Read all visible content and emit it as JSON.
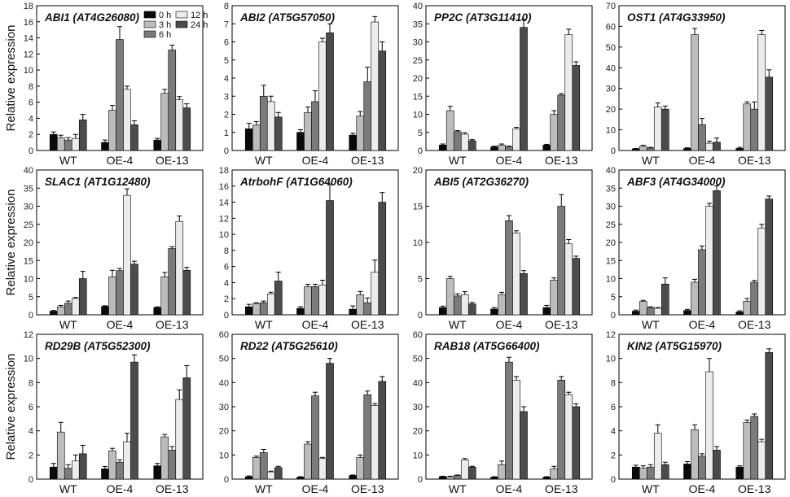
{
  "chart_data": {
    "type": "bar",
    "ylabel": "Relative expression",
    "categories": [
      "WT",
      "OE-4",
      "OE-13"
    ],
    "legend": {
      "position": "top-right of first panel",
      "entries": [
        "0 h",
        "3 h",
        "6 h",
        "12 h",
        "24 h"
      ],
      "colors": [
        "#0a0a0a",
        "#bcbcbc",
        "#7b7b7b",
        "#ececec",
        "#4c4c4c"
      ]
    },
    "series_names": [
      "0 h",
      "3 h",
      "6 h",
      "12 h",
      "24 h"
    ],
    "series_colors": [
      "#0a0a0a",
      "#bcbcbc",
      "#7b7b7b",
      "#ececec",
      "#4c4c4c"
    ],
    "panels": [
      {
        "title": "ABI1 (AT4G26080)",
        "ylim": [
          0,
          18
        ],
        "yticks": [
          0,
          2,
          4,
          6,
          8,
          10,
          12,
          14,
          16,
          18
        ],
        "values": [
          [
            2.0,
            1.6,
            1.3,
            1.5,
            3.8
          ],
          [
            1.0,
            5.0,
            13.8,
            7.6,
            3.2
          ],
          [
            1.3,
            7.1,
            12.5,
            6.3,
            5.3
          ]
        ],
        "errors": [
          [
            0.3,
            0.3,
            0.3,
            0.5,
            0.7
          ],
          [
            0.3,
            0.6,
            1.6,
            0.4,
            0.5
          ],
          [
            0.2,
            0.5,
            0.6,
            0.4,
            0.5
          ]
        ]
      },
      {
        "title": "ABI2 (AT5G57050)",
        "ylim": [
          0,
          8
        ],
        "yticks": [
          0,
          1,
          2,
          3,
          4,
          5,
          6,
          7,
          8
        ],
        "values": [
          [
            1.2,
            1.4,
            3.0,
            2.7,
            1.85
          ],
          [
            1.0,
            2.1,
            2.7,
            6.0,
            6.5
          ],
          [
            0.85,
            1.9,
            3.8,
            7.1,
            5.5
          ]
        ],
        "errors": [
          [
            0.3,
            0.2,
            0.6,
            0.3,
            0.25
          ],
          [
            0.15,
            0.3,
            0.6,
            0.2,
            0.5
          ],
          [
            0.1,
            0.25,
            0.8,
            0.3,
            0.5
          ]
        ]
      },
      {
        "title": "PP2C (AT3G11410)",
        "ylim": [
          0,
          40
        ],
        "yticks": [
          0,
          5,
          10,
          15,
          20,
          25,
          30,
          35,
          40
        ],
        "values": [
          [
            1.5,
            11.0,
            5.2,
            4.5,
            2.7
          ],
          [
            1.0,
            1.5,
            1.0,
            6.0,
            34.0
          ],
          [
            1.5,
            10.0,
            15.3,
            32.0,
            23.5
          ]
        ],
        "errors": [
          [
            0.3,
            1.2,
            0.3,
            0.4,
            0.3
          ],
          [
            0.2,
            0.3,
            0.2,
            0.4,
            2.2
          ],
          [
            0.2,
            1.0,
            0.4,
            1.5,
            1.0
          ]
        ]
      },
      {
        "title": "OST1 (AT4G33950)",
        "ylim": [
          0,
          70
        ],
        "yticks": [
          0,
          10,
          20,
          30,
          40,
          50,
          60,
          70
        ],
        "values": [
          [
            0.8,
            2.0,
            1.2,
            21.0,
            20.0
          ],
          [
            1.0,
            56.0,
            12.5,
            3.5,
            4.0
          ],
          [
            1.0,
            22.5,
            20.0,
            56.0,
            35.5
          ]
        ],
        "errors": [
          [
            0.2,
            0.5,
            0.3,
            2.0,
            1.5
          ],
          [
            0.3,
            3.0,
            3.0,
            1.0,
            2.0
          ],
          [
            0.5,
            1.0,
            3.5,
            2.0,
            3.5
          ]
        ]
      },
      {
        "title": "SLAC1 (AT1G12480)",
        "ylim": [
          0,
          40
        ],
        "yticks": [
          0,
          5,
          10,
          15,
          20,
          25,
          30,
          35,
          40
        ],
        "values": [
          [
            1.0,
            2.2,
            3.2,
            4.5,
            10.0
          ],
          [
            2.3,
            10.5,
            12.2,
            33.0,
            14.0
          ],
          [
            2.0,
            10.5,
            18.3,
            25.8,
            12.3
          ]
        ],
        "errors": [
          [
            0.2,
            0.4,
            0.6,
            0.3,
            2.0
          ],
          [
            0.2,
            1.8,
            0.6,
            1.8,
            0.8
          ],
          [
            0.2,
            1.2,
            0.5,
            1.5,
            0.8
          ]
        ]
      },
      {
        "title": "AtrbohF (AT1G64060)",
        "ylim": [
          0,
          18
        ],
        "yticks": [
          0,
          2,
          4,
          6,
          8,
          10,
          12,
          14,
          16,
          18
        ],
        "values": [
          [
            1.0,
            1.4,
            1.5,
            2.6,
            4.2
          ],
          [
            0.8,
            3.5,
            3.5,
            3.7,
            14.2
          ],
          [
            0.7,
            2.5,
            1.5,
            5.3,
            14.0
          ]
        ],
        "errors": [
          [
            0.3,
            0.1,
            0.2,
            0.2,
            1.1
          ],
          [
            0.2,
            0.3,
            0.3,
            0.6,
            2.0
          ],
          [
            0.4,
            0.4,
            0.6,
            1.5,
            1.2
          ]
        ]
      },
      {
        "title": "ABI5 (AT2G36270)",
        "ylim": [
          0,
          20
        ],
        "yticks": [
          0,
          5,
          10,
          15,
          20
        ],
        "values": [
          [
            1.0,
            5.0,
            2.6,
            2.8,
            1.5
          ],
          [
            0.8,
            2.8,
            13.0,
            11.3,
            5.7
          ],
          [
            1.0,
            4.8,
            15.0,
            9.8,
            7.8
          ]
        ],
        "errors": [
          [
            0.2,
            0.3,
            0.3,
            0.4,
            0.2
          ],
          [
            0.2,
            0.3,
            0.7,
            0.3,
            0.4
          ],
          [
            0.3,
            0.3,
            1.6,
            0.6,
            0.3
          ]
        ]
      },
      {
        "title": "ABF3 (AT4G34000)",
        "ylim": [
          0,
          40
        ],
        "yticks": [
          0,
          5,
          10,
          15,
          20,
          25,
          30,
          35,
          40
        ],
        "values": [
          [
            1.0,
            3.7,
            2.0,
            1.8,
            8.5
          ],
          [
            1.2,
            9.0,
            18.0,
            30.0,
            34.3
          ],
          [
            0.8,
            3.7,
            9.0,
            24.0,
            32.0
          ]
        ],
        "errors": [
          [
            0.3,
            0.3,
            0.2,
            0.2,
            1.7
          ],
          [
            0.3,
            0.8,
            1.0,
            0.8,
            1.3
          ],
          [
            0.3,
            0.8,
            0.5,
            1.0,
            0.8
          ]
        ]
      },
      {
        "title": "RD29B (AT5G52300)",
        "ylim": [
          0,
          12
        ],
        "yticks": [
          0,
          2,
          4,
          6,
          8,
          10,
          12
        ],
        "values": [
          [
            1.0,
            3.9,
            0.9,
            1.5,
            2.1
          ],
          [
            0.85,
            2.35,
            1.4,
            3.1,
            9.7
          ],
          [
            1.1,
            3.5,
            2.4,
            6.6,
            8.4
          ]
        ],
        "errors": [
          [
            0.3,
            0.8,
            0.3,
            0.5,
            0.7
          ],
          [
            0.2,
            0.2,
            0.2,
            0.7,
            0.6
          ],
          [
            0.2,
            0.2,
            0.3,
            0.8,
            1.0
          ]
        ]
      },
      {
        "title": "RD22 (AT5G25610)",
        "ylim": [
          0,
          60
        ],
        "yticks": [
          0,
          10,
          20,
          30,
          40,
          50,
          60
        ],
        "values": [
          [
            1.0,
            9.0,
            11.0,
            3.0,
            4.8
          ],
          [
            0.8,
            14.5,
            34.5,
            8.5,
            48.0
          ],
          [
            1.5,
            9.0,
            35.0,
            30.5,
            40.5
          ]
        ],
        "errors": [
          [
            0.3,
            0.5,
            1.3,
            0.3,
            0.5
          ],
          [
            0.2,
            1.0,
            1.5,
            0.5,
            2.0
          ],
          [
            0.2,
            1.0,
            1.5,
            0.8,
            2.0
          ]
        ]
      },
      {
        "title": "RAB18 (AT5G66400)",
        "ylim": [
          0,
          60
        ],
        "yticks": [
          0,
          10,
          20,
          30,
          40,
          50,
          60
        ],
        "values": [
          [
            1.0,
            1.0,
            1.5,
            8.0,
            5.0
          ],
          [
            0.8,
            6.0,
            48.5,
            41.0,
            28.0
          ],
          [
            0.8,
            4.3,
            41.0,
            35.0,
            30.0
          ]
        ],
        "errors": [
          [
            0.2,
            0.2,
            0.2,
            0.5,
            0.3
          ],
          [
            0.2,
            1.5,
            2.0,
            1.5,
            2.0
          ],
          [
            0.2,
            1.0,
            1.5,
            1.0,
            1.2
          ]
        ]
      },
      {
        "title": "KIN2 (AT5G15970)",
        "ylim": [
          0,
          12
        ],
        "yticks": [
          0,
          2,
          4,
          6,
          8,
          10,
          12
        ],
        "values": [
          [
            1.0,
            0.9,
            1.0,
            3.8,
            1.2
          ],
          [
            1.25,
            4.1,
            1.9,
            8.9,
            2.4
          ],
          [
            1.0,
            4.7,
            5.2,
            3.1,
            10.5
          ]
        ],
        "errors": [
          [
            0.15,
            0.2,
            0.2,
            0.7,
            0.2
          ],
          [
            0.2,
            0.4,
            0.2,
            1.1,
            0.3
          ],
          [
            0.1,
            0.2,
            0.2,
            0.2,
            0.3
          ]
        ]
      }
    ]
  }
}
